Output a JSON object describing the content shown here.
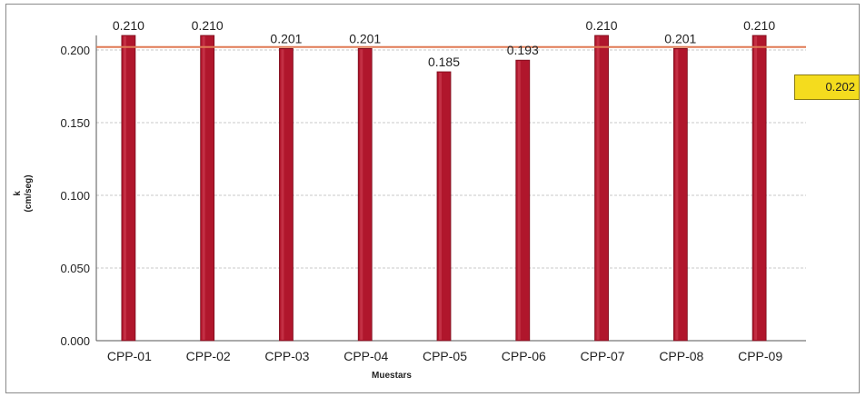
{
  "chart_data": {
    "type": "bar",
    "title": "",
    "xlabel": "Muestars",
    "ylabel": "k",
    "ylabel_unit": "(cm/seg)",
    "categories": [
      "CPP-01",
      "CPP-02",
      "CPP-03",
      "CPP-04",
      "CPP-05",
      "CPP-06",
      "CPP-07",
      "CPP-08",
      "CPP-09"
    ],
    "values": [
      0.21,
      0.21,
      0.201,
      0.201,
      0.185,
      0.193,
      0.21,
      0.201,
      0.21
    ],
    "data_labels": [
      "0.210",
      "0.210",
      "0.201",
      "0.201",
      "0.185",
      "0.193",
      "0.210",
      "0.201",
      "0.210"
    ],
    "ylim": [
      0,
      0.2
    ],
    "yticks": [
      0.0,
      0.05,
      0.1,
      0.15,
      0.2
    ],
    "ytick_labels": [
      "0.000",
      "0.050",
      "0.100",
      "0.150",
      "0.200"
    ],
    "grid": true,
    "reference_line": {
      "value": 0.202,
      "label": "0.202"
    },
    "colors": {
      "bar": "#b0162c",
      "reference_line": "#e07a55",
      "badge": "#f4dc1e",
      "grid": "#c8c8c8"
    }
  }
}
